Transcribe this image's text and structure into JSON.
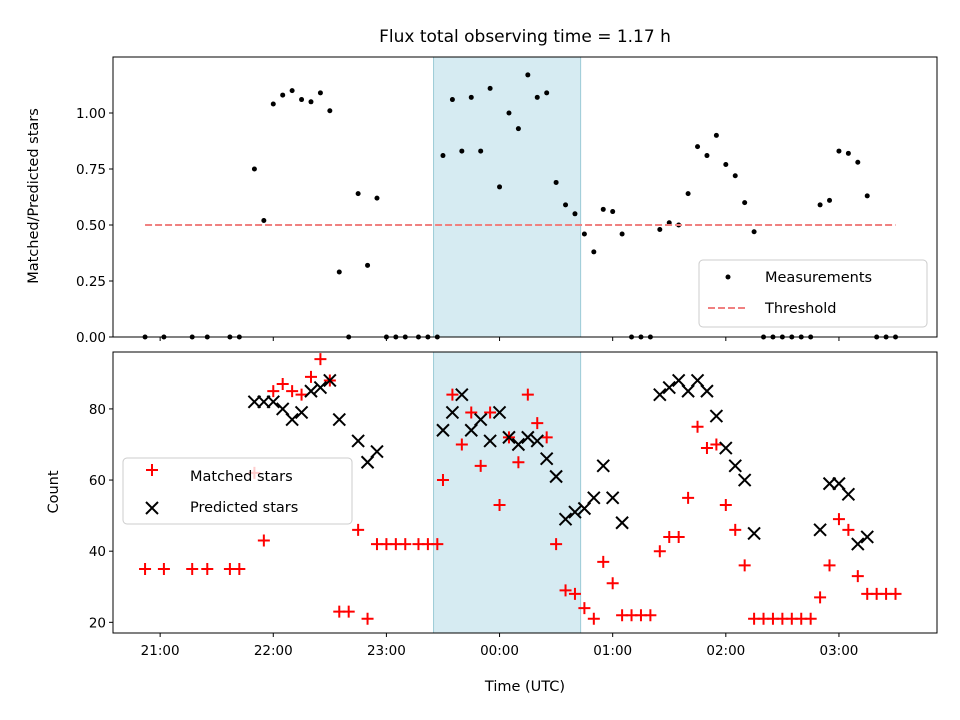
{
  "title": "Flux total observing time = 1.17 h",
  "chart_data": [
    {
      "type": "scatter",
      "ylabel": "Matched/Predicted stars",
      "xlabel": "",
      "xlim": [
        "20:35",
        "03:52"
      ],
      "ylim": [
        0,
        1.25
      ],
      "y_ticks": [
        "0.00",
        "0.25",
        "0.50",
        "0.75",
        "1.00"
      ],
      "highlight_span": [
        "23:25",
        "00:43"
      ],
      "threshold": 0.5,
      "legend_position": "lower-right",
      "series": [
        {
          "name": "Measurements",
          "marker": "dot",
          "color": "#000000",
          "points": [
            [
              "20:52",
              0.0
            ],
            [
              "21:02",
              0.0
            ],
            [
              "21:17",
              0.0
            ],
            [
              "21:25",
              0.0
            ],
            [
              "21:37",
              0.0
            ],
            [
              "21:42",
              0.0
            ],
            [
              "21:50",
              0.75
            ],
            [
              "21:55",
              0.52
            ],
            [
              "22:00",
              1.04
            ],
            [
              "22:05",
              1.08
            ],
            [
              "22:10",
              1.1
            ],
            [
              "22:15",
              1.06
            ],
            [
              "22:20",
              1.05
            ],
            [
              "22:25",
              1.09
            ],
            [
              "22:30",
              1.01
            ],
            [
              "22:35",
              0.29
            ],
            [
              "22:40",
              0.0
            ],
            [
              "22:45",
              0.64
            ],
            [
              "22:50",
              0.32
            ],
            [
              "22:55",
              0.62
            ],
            [
              "23:00",
              0.0
            ],
            [
              "23:05",
              0.0
            ],
            [
              "23:10",
              0.0
            ],
            [
              "23:17",
              0.0
            ],
            [
              "23:22",
              0.0
            ],
            [
              "23:27",
              0.0
            ],
            [
              "23:30",
              0.81
            ],
            [
              "23:35",
              1.06
            ],
            [
              "23:40",
              0.83
            ],
            [
              "23:45",
              1.07
            ],
            [
              "23:50",
              0.83
            ],
            [
              "23:55",
              1.11
            ],
            [
              "00:00",
              0.67
            ],
            [
              "00:05",
              1.0
            ],
            [
              "00:10",
              0.93
            ],
            [
              "00:15",
              1.17
            ],
            [
              "00:20",
              1.07
            ],
            [
              "00:25",
              1.09
            ],
            [
              "00:30",
              0.69
            ],
            [
              "00:35",
              0.59
            ],
            [
              "00:40",
              0.55
            ],
            [
              "00:45",
              0.46
            ],
            [
              "00:50",
              0.38
            ],
            [
              "00:55",
              0.57
            ],
            [
              "01:00",
              0.56
            ],
            [
              "01:05",
              0.46
            ],
            [
              "01:10",
              0.0
            ],
            [
              "01:15",
              0.0
            ],
            [
              "01:20",
              0.0
            ],
            [
              "01:25",
              0.48
            ],
            [
              "01:30",
              0.51
            ],
            [
              "01:35",
              0.5
            ],
            [
              "01:40",
              0.64
            ],
            [
              "01:45",
              0.85
            ],
            [
              "01:50",
              0.81
            ],
            [
              "01:55",
              0.9
            ],
            [
              "02:00",
              0.77
            ],
            [
              "02:05",
              0.72
            ],
            [
              "02:10",
              0.6
            ],
            [
              "02:15",
              0.47
            ],
            [
              "02:20",
              0.0
            ],
            [
              "02:25",
              0.0
            ],
            [
              "02:30",
              0.0
            ],
            [
              "02:35",
              0.0
            ],
            [
              "02:40",
              0.0
            ],
            [
              "02:45",
              0.0
            ],
            [
              "02:50",
              0.59
            ],
            [
              "02:55",
              0.61
            ],
            [
              "03:00",
              0.83
            ],
            [
              "03:05",
              0.82
            ],
            [
              "03:10",
              0.78
            ],
            [
              "03:15",
              0.63
            ],
            [
              "03:20",
              0.0
            ],
            [
              "03:25",
              0.0
            ],
            [
              "03:30",
              0.0
            ]
          ]
        },
        {
          "name": "Threshold",
          "style": "dashed",
          "color": "#f08080",
          "points": [
            [
              "20:52",
              0.5
            ],
            [
              "03:30",
              0.5
            ]
          ]
        }
      ]
    },
    {
      "type": "scatter",
      "ylabel": "Count",
      "xlabel": "Time (UTC)",
      "xlim": [
        "20:35",
        "03:52"
      ],
      "ylim": [
        17,
        96
      ],
      "y_ticks": [
        "20",
        "40",
        "60",
        "80"
      ],
      "x_ticks": [
        "21:00",
        "22:00",
        "23:00",
        "00:00",
        "01:00",
        "02:00",
        "03:00"
      ],
      "highlight_span": [
        "23:25",
        "00:43"
      ],
      "legend_position": "center-left",
      "series": [
        {
          "name": "Matched stars",
          "marker": "plus",
          "color": "#ff0000",
          "points": [
            [
              "20:52",
              35
            ],
            [
              "21:02",
              35
            ],
            [
              "21:17",
              35
            ],
            [
              "21:25",
              35
            ],
            [
              "21:37",
              35
            ],
            [
              "21:42",
              35
            ],
            [
              "21:50",
              62
            ],
            [
              "21:55",
              43
            ],
            [
              "22:00",
              85
            ],
            [
              "22:05",
              87
            ],
            [
              "22:10",
              85
            ],
            [
              "22:15",
              84
            ],
            [
              "22:20",
              89
            ],
            [
              "22:25",
              94
            ],
            [
              "22:30",
              88
            ],
            [
              "22:35",
              23
            ],
            [
              "22:40",
              23
            ],
            [
              "22:45",
              46
            ],
            [
              "22:50",
              21
            ],
            [
              "22:55",
              42
            ],
            [
              "23:00",
              42
            ],
            [
              "23:05",
              42
            ],
            [
              "23:10",
              42
            ],
            [
              "23:17",
              42
            ],
            [
              "23:22",
              42
            ],
            [
              "23:27",
              42
            ],
            [
              "23:30",
              60
            ],
            [
              "23:35",
              84
            ],
            [
              "23:40",
              70
            ],
            [
              "23:45",
              79
            ],
            [
              "23:50",
              64
            ],
            [
              "23:55",
              79
            ],
            [
              "00:00",
              53
            ],
            [
              "00:05",
              72
            ],
            [
              "00:10",
              65
            ],
            [
              "00:15",
              84
            ],
            [
              "00:20",
              76
            ],
            [
              "00:25",
              72
            ],
            [
              "00:30",
              42
            ],
            [
              "00:35",
              29
            ],
            [
              "00:40",
              28
            ],
            [
              "00:45",
              24
            ],
            [
              "00:50",
              21
            ],
            [
              "00:55",
              37
            ],
            [
              "01:00",
              31
            ],
            [
              "01:05",
              22
            ],
            [
              "01:10",
              22
            ],
            [
              "01:15",
              22
            ],
            [
              "01:20",
              22
            ],
            [
              "01:25",
              40
            ],
            [
              "01:30",
              44
            ],
            [
              "01:35",
              44
            ],
            [
              "01:40",
              55
            ],
            [
              "01:45",
              75
            ],
            [
              "01:50",
              69
            ],
            [
              "01:55",
              70
            ],
            [
              "02:00",
              53
            ],
            [
              "02:05",
              46
            ],
            [
              "02:10",
              36
            ],
            [
              "02:15",
              21
            ],
            [
              "02:20",
              21
            ],
            [
              "02:25",
              21
            ],
            [
              "02:30",
              21
            ],
            [
              "02:35",
              21
            ],
            [
              "02:40",
              21
            ],
            [
              "02:45",
              21
            ],
            [
              "02:50",
              27
            ],
            [
              "02:55",
              36
            ],
            [
              "03:00",
              49
            ],
            [
              "03:05",
              46
            ],
            [
              "03:10",
              33
            ],
            [
              "03:15",
              28
            ],
            [
              "03:20",
              28
            ],
            [
              "03:25",
              28
            ],
            [
              "03:30",
              28
            ]
          ]
        },
        {
          "name": "Predicted stars",
          "marker": "x",
          "color": "#000000",
          "points": [
            [
              "21:50",
              82
            ],
            [
              "21:55",
              82
            ],
            [
              "22:00",
              82
            ],
            [
              "22:05",
              80
            ],
            [
              "22:10",
              77
            ],
            [
              "22:15",
              79
            ],
            [
              "22:20",
              85
            ],
            [
              "22:25",
              86
            ],
            [
              "22:30",
              88
            ],
            [
              "22:35",
              77
            ],
            [
              "22:45",
              71
            ],
            [
              "22:50",
              65
            ],
            [
              "22:55",
              68
            ],
            [
              "23:30",
              74
            ],
            [
              "23:35",
              79
            ],
            [
              "23:40",
              84
            ],
            [
              "23:45",
              74
            ],
            [
              "23:50",
              77
            ],
            [
              "23:55",
              71
            ],
            [
              "00:00",
              79
            ],
            [
              "00:05",
              72
            ],
            [
              "00:10",
              70
            ],
            [
              "00:15",
              72
            ],
            [
              "00:20",
              71
            ],
            [
              "00:25",
              66
            ],
            [
              "00:30",
              61
            ],
            [
              "00:35",
              49
            ],
            [
              "00:40",
              51
            ],
            [
              "00:45",
              52
            ],
            [
              "00:50",
              55
            ],
            [
              "00:55",
              64
            ],
            [
              "01:00",
              55
            ],
            [
              "01:05",
              48
            ],
            [
              "01:25",
              84
            ],
            [
              "01:30",
              86
            ],
            [
              "01:35",
              88
            ],
            [
              "01:40",
              85
            ],
            [
              "01:45",
              88
            ],
            [
              "01:50",
              85
            ],
            [
              "01:55",
              78
            ],
            [
              "02:00",
              69
            ],
            [
              "02:05",
              64
            ],
            [
              "02:10",
              60
            ],
            [
              "02:15",
              45
            ],
            [
              "02:50",
              46
            ],
            [
              "02:55",
              59
            ],
            [
              "03:00",
              59
            ],
            [
              "03:05",
              56
            ],
            [
              "03:10",
              42
            ],
            [
              "03:15",
              44
            ]
          ]
        }
      ]
    }
  ]
}
